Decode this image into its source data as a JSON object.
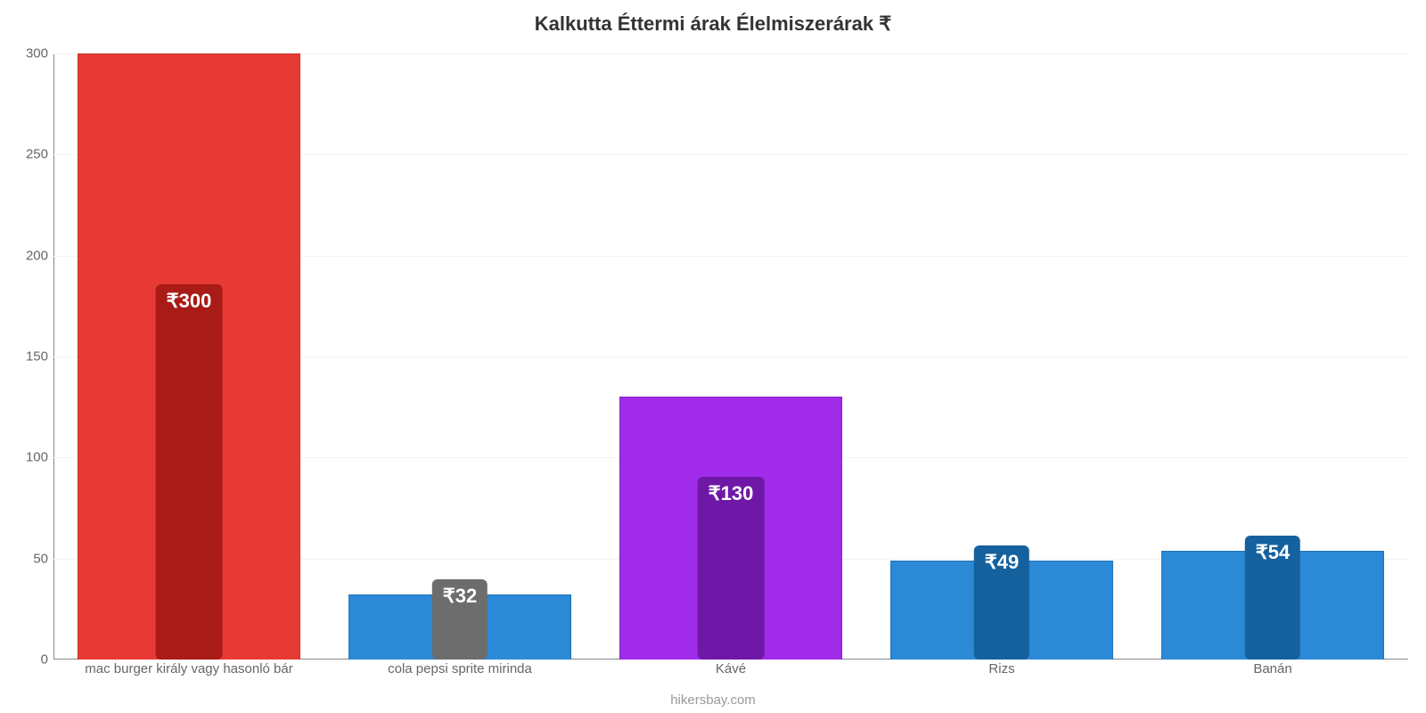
{
  "chart": {
    "type": "bar",
    "title": "Kalkutta Éttermi árak Élelmiszerárak ₹",
    "title_fontsize": 22,
    "title_color": "#333333",
    "attribution": "hikersbay.com",
    "attribution_color": "#999999",
    "background_color": "#ffffff",
    "axis_color": "#888888",
    "grid_color": "#f2f2f2",
    "tick_label_color": "#666666",
    "tick_label_fontsize": 15,
    "x_label_fontsize": 15,
    "y": {
      "min": 0,
      "max": 300,
      "ticks": [
        0,
        50,
        100,
        150,
        200,
        250,
        300
      ]
    },
    "bar_width_ratio": 0.82,
    "value_label_fontsize": 22,
    "items": [
      {
        "label": "mac burger király vagy hasonló bár",
        "value": 300,
        "value_label": "₹300",
        "bar_color": "#e83a34",
        "badge_color": "#a81b16"
      },
      {
        "label": "cola pepsi sprite mirinda",
        "value": 32,
        "value_label": "₹32",
        "bar_color": "#2b89d6",
        "badge_color": "#6d6d6d"
      },
      {
        "label": "Kávé",
        "value": 130,
        "value_label": "₹130",
        "bar_color": "#a02be8",
        "badge_color": "#6f18a8"
      },
      {
        "label": "Rizs",
        "value": 49,
        "value_label": "₹49",
        "bar_color": "#2b89d6",
        "badge_color": "#15619e"
      },
      {
        "label": "Banán",
        "value": 54,
        "value_label": "₹54",
        "bar_color": "#2b89d6",
        "badge_color": "#15619e"
      }
    ]
  }
}
